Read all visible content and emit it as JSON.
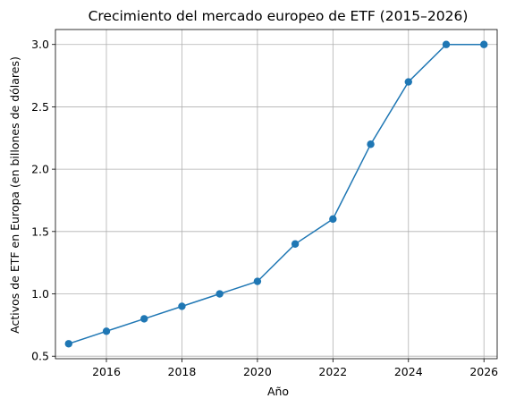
{
  "chart_data": {
    "type": "line",
    "title": "Crecimiento del mercado europeo de ETF (2015–2026)",
    "xlabel": "Año",
    "ylabel": "Activos de ETF en Europa (en billones de dólares)",
    "x": [
      2015,
      2016,
      2017,
      2018,
      2019,
      2020,
      2021,
      2022,
      2023,
      2024,
      2025,
      2026
    ],
    "series": [
      {
        "values": [
          0.6,
          0.7,
          0.8,
          0.9,
          1.0,
          1.1,
          1.4,
          1.6,
          2.2,
          2.7,
          3.0,
          3.0
        ]
      }
    ],
    "xlim": [
      2014.65,
      2026.35
    ],
    "ylim": [
      0.48,
      3.12
    ],
    "xticks": [
      "2016",
      "2018",
      "2020",
      "2022",
      "2024",
      "2026"
    ],
    "yticks": [
      "0.5",
      "1.0",
      "1.5",
      "2.0",
      "2.5",
      "3.0"
    ],
    "grid": true,
    "color": "#1f77b4",
    "marker": "circle"
  }
}
